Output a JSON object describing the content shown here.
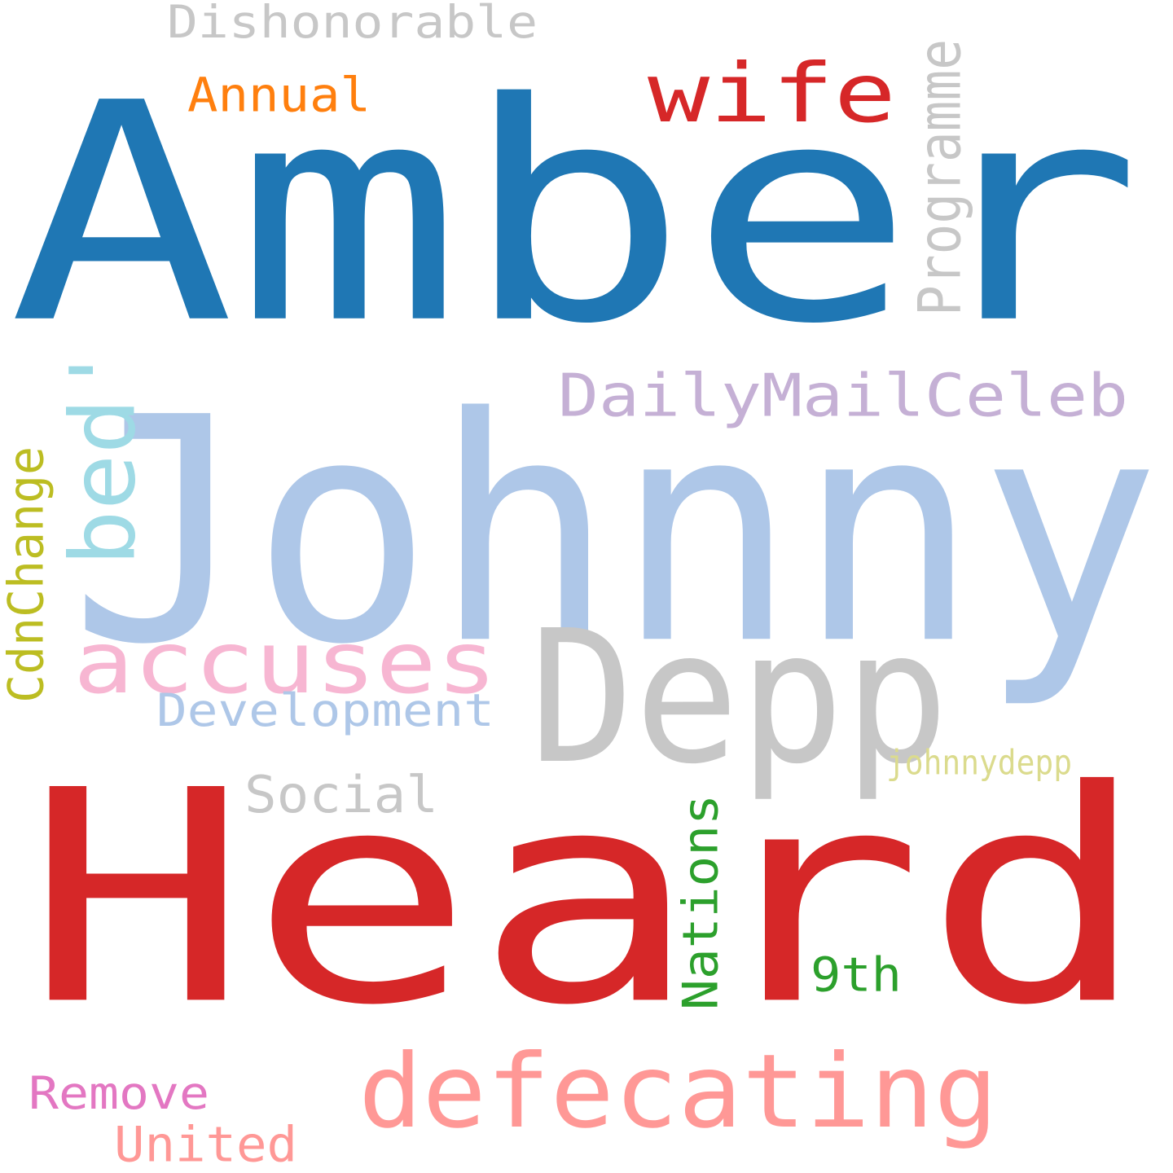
{
  "words": [
    {
      "text": "Amber",
      "color": "#1f77b4"
    },
    {
      "text": "Johnny",
      "color": "#aec7e8"
    },
    {
      "text": "Heard",
      "color": "#d62728"
    },
    {
      "text": "Depp",
      "color": "#c7c7c7"
    },
    {
      "text": "accuses",
      "color": "#f7b6d2"
    },
    {
      "text": "defecating",
      "color": "#ff9896"
    },
    {
      "text": "bed'",
      "color": "#9edae5"
    },
    {
      "text": "wife",
      "color": "#d62728"
    },
    {
      "text": "DailyMailCeleb",
      "color": "#c5b0d5"
    },
    {
      "text": "Dishonorable",
      "color": "#c7c7c7"
    },
    {
      "text": "Annual",
      "color": "#ff7f0e"
    },
    {
      "text": "Programme",
      "color": "#c7c7c7"
    },
    {
      "text": "CdnChange",
      "color": "#bcbd22"
    },
    {
      "text": "Development",
      "color": "#aec7e8"
    },
    {
      "text": "Social",
      "color": "#c7c7c7"
    },
    {
      "text": "Nations",
      "color": "#2ca02c"
    },
    {
      "text": "9th",
      "color": "#2ca02c"
    },
    {
      "text": "johnnydepp",
      "color": "#dbdb8d"
    },
    {
      "text": "Remove",
      "color": "#e377c2"
    },
    {
      "text": "United",
      "color": "#ff9896"
    }
  ]
}
